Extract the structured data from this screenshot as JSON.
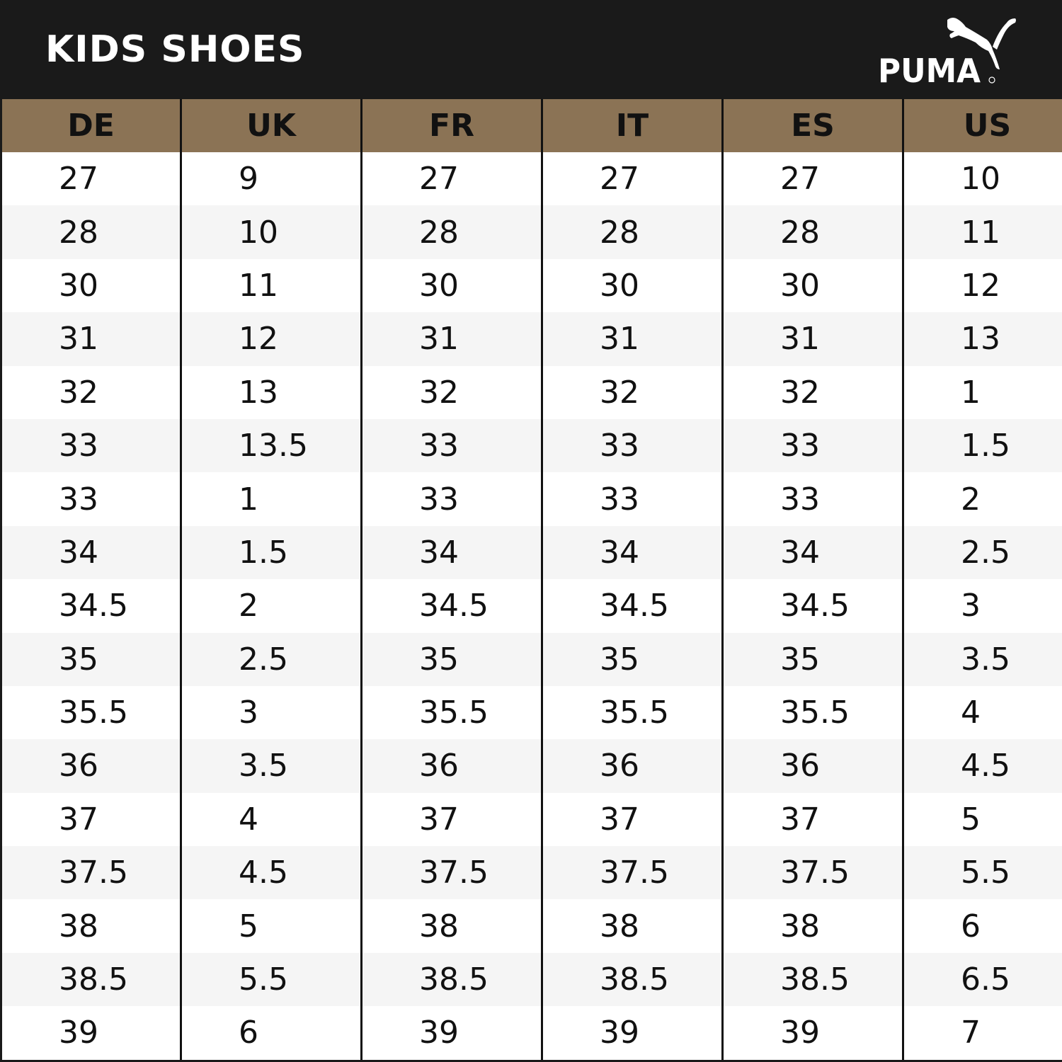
{
  "header": {
    "title": "KIDS SHOES",
    "brand": "PUMA"
  },
  "colors": {
    "background": "#1a1a1a",
    "header_row": "#8b7355",
    "row_alt": "#f5f5f5"
  },
  "table": {
    "columns": [
      "DE",
      "UK",
      "FR",
      "IT",
      "ES",
      "US"
    ],
    "rows": [
      [
        "27",
        "9",
        "27",
        "27",
        "27",
        "10"
      ],
      [
        "28",
        "10",
        "28",
        "28",
        "28",
        "11"
      ],
      [
        "30",
        "11",
        "30",
        "30",
        "30",
        "12"
      ],
      [
        "31",
        "12",
        "31",
        "31",
        "31",
        "13"
      ],
      [
        "32",
        "13",
        "32",
        "32",
        "32",
        "1"
      ],
      [
        "33",
        "13.5",
        "33",
        "33",
        "33",
        "1.5"
      ],
      [
        "33",
        "1",
        "33",
        "33",
        "33",
        "2"
      ],
      [
        "34",
        "1.5",
        "34",
        "34",
        "34",
        "2.5"
      ],
      [
        "34.5",
        "2",
        "34.5",
        "34.5",
        "34.5",
        "3"
      ],
      [
        "35",
        "2.5",
        "35",
        "35",
        "35",
        "3.5"
      ],
      [
        "35.5",
        "3",
        "35.5",
        "35.5",
        "35.5",
        "4"
      ],
      [
        "36",
        "3.5",
        "36",
        "36",
        "36",
        "4.5"
      ],
      [
        "37",
        "4",
        "37",
        "37",
        "37",
        "5"
      ],
      [
        "37.5",
        "4.5",
        "37.5",
        "37.5",
        "37.5",
        "5.5"
      ],
      [
        "38",
        "5",
        "38",
        "38",
        "38",
        "6"
      ],
      [
        "38.5",
        "5.5",
        "38.5",
        "38.5",
        "38.5",
        "6.5"
      ],
      [
        "39",
        "6",
        "39",
        "39",
        "39",
        "7"
      ]
    ]
  }
}
